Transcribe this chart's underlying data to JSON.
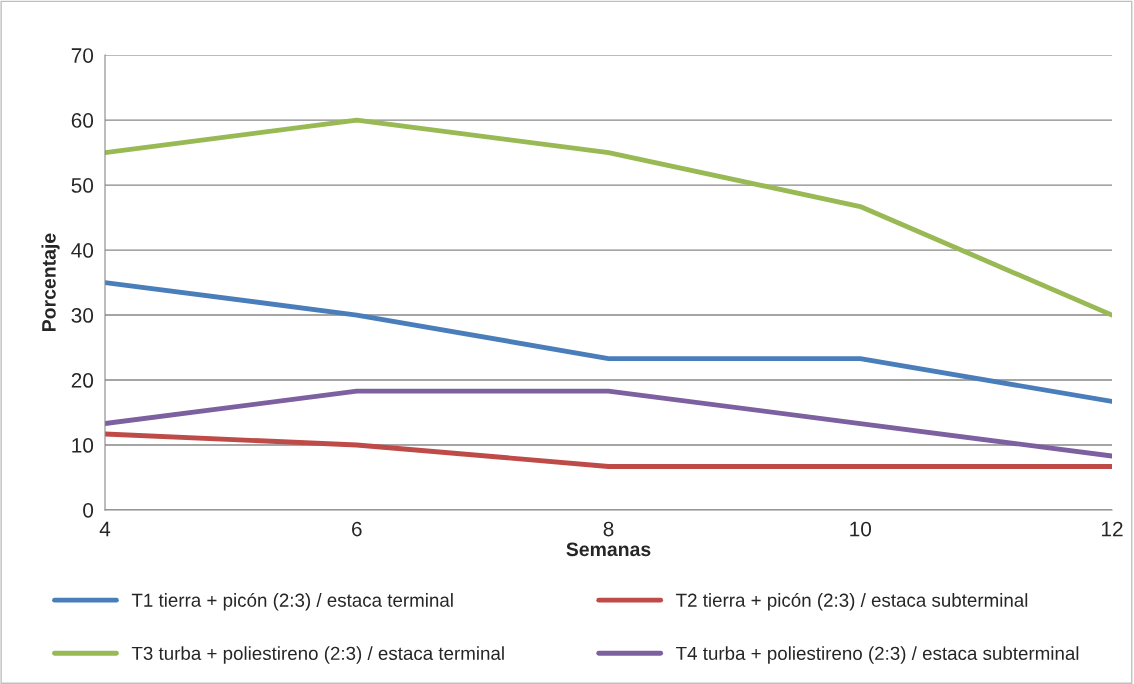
{
  "chart_data": {
    "type": "line",
    "xlabel": "Semanas",
    "ylabel": "Porcentaje",
    "x": [
      4,
      6,
      8,
      10,
      12
    ],
    "series": [
      {
        "name": "T1 tierra + picón (2:3) / estaca terminal",
        "color": "#4a7ebb",
        "values": [
          35,
          30,
          23.3,
          23.3,
          16.7
        ]
      },
      {
        "name": "T2 tierra + picón (2:3) / estaca subterminal",
        "color": "#be4b48",
        "values": [
          11.7,
          10,
          6.7,
          6.7,
          6.7
        ]
      },
      {
        "name": "T3 turba + poliestireno (2:3) / estaca terminal",
        "color": "#98b954",
        "values": [
          55,
          60,
          55,
          46.7,
          30
        ]
      },
      {
        "name": "T4 turba + poliestireno (2:3) / estaca subterminal",
        "color": "#7d60a0",
        "values": [
          13.3,
          18.3,
          18.3,
          13.3,
          8.3
        ]
      }
    ],
    "xlim": [
      4,
      12
    ],
    "xticks": [
      4,
      6,
      8,
      10,
      12
    ],
    "ylim": [
      0,
      70
    ],
    "yticks": [
      0,
      10,
      20,
      30,
      40,
      50,
      60,
      70
    ],
    "grid": "y",
    "legend": "bottom",
    "marker": "none",
    "line_style": "solid"
  }
}
